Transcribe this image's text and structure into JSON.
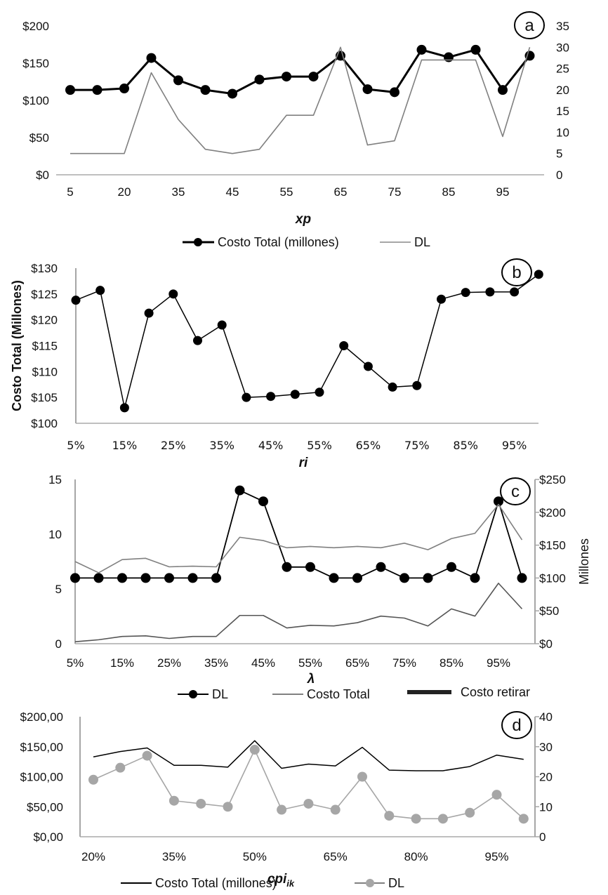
{
  "chart_data": [
    {
      "id": "a",
      "type": "line",
      "badge": "a",
      "xlabel": "xp",
      "categories": [
        "5",
        "15",
        "20",
        "30",
        "35",
        "40",
        "45",
        "50",
        "55",
        "60",
        "65",
        "70",
        "75",
        "80",
        "85",
        "90",
        "95",
        "100"
      ],
      "tick_labels": [
        "5",
        "",
        "20",
        "",
        "35",
        "",
        "45",
        "",
        "55",
        "",
        "65",
        "",
        "75",
        "",
        "85",
        "",
        "95",
        ""
      ],
      "y_left": {
        "ticks": [
          "$0",
          "$50",
          "$100",
          "$150",
          "$200"
        ],
        "range": [
          0,
          200
        ]
      },
      "y_right": {
        "ticks": [
          "0",
          "5",
          "10",
          "15",
          "20",
          "25",
          "30",
          "35"
        ],
        "range": [
          0,
          35
        ]
      },
      "series": [
        {
          "name": "Costo Total (millones)",
          "axis": "left",
          "color": "#000000",
          "markers": true,
          "values": [
            114,
            114,
            116,
            157,
            127,
            114,
            109,
            128,
            132,
            132,
            160,
            115,
            111,
            168,
            158,
            168,
            114,
            160
          ]
        },
        {
          "name": "DL",
          "axis": "right",
          "color": "#808080",
          "markers": false,
          "values": [
            5,
            5,
            5,
            24,
            13,
            6,
            5,
            6,
            14,
            14,
            30,
            7,
            8,
            27,
            27,
            27,
            9,
            30
          ]
        }
      ],
      "legend": [
        "Costo Total (millones)",
        "DL"
      ]
    },
    {
      "id": "b",
      "type": "line",
      "badge": "b",
      "xlabel": "ri",
      "ylabel": "Costo Total (Millones)",
      "categories": [
        "5%",
        "10%",
        "15%",
        "20%",
        "25%",
        "30%",
        "35%",
        "40%",
        "45%",
        "50%",
        "55%",
        "60%",
        "65%",
        "70%",
        "75%",
        "80%",
        "85%",
        "90%",
        "95%",
        "100%"
      ],
      "tick_labels": [
        "5%",
        "",
        "15%",
        "",
        "25%",
        "",
        "35%",
        "",
        "45%",
        "",
        "55%",
        "",
        "65%",
        "",
        "75%",
        "",
        "85%",
        "",
        "95%",
        ""
      ],
      "y_left": {
        "ticks": [
          "$100",
          "$105",
          "$110",
          "$115",
          "$120",
          "$125",
          "$130"
        ],
        "range": [
          100,
          130
        ]
      },
      "series": [
        {
          "name": "Costo Total",
          "axis": "left",
          "color": "#000000",
          "markers": true,
          "values": [
            123.8,
            125.7,
            103,
            121.3,
            125,
            116,
            119,
            105,
            105.2,
            105.6,
            106,
            115,
            111,
            107,
            107.3,
            124,
            125.3,
            125.4,
            125.4,
            128.8
          ]
        }
      ]
    },
    {
      "id": "c",
      "type": "line",
      "badge": "c",
      "xlabel": "λ",
      "ylabel_right": "Millones",
      "categories": [
        "5%",
        "10%",
        "15%",
        "20%",
        "25%",
        "30%",
        "35%",
        "40%",
        "45%",
        "50%",
        "55%",
        "60%",
        "65%",
        "70%",
        "75%",
        "80%",
        "85%",
        "90%",
        "95%",
        "100%"
      ],
      "tick_labels": [
        "5%",
        "",
        "15%",
        "",
        "25%",
        "",
        "35%",
        "",
        "45%",
        "",
        "55%",
        "",
        "65%",
        "",
        "75%",
        "",
        "85%",
        "",
        "95%",
        ""
      ],
      "y_left": {
        "ticks": [
          "0",
          "5",
          "10",
          "15"
        ],
        "range": [
          0,
          15
        ]
      },
      "y_right": {
        "ticks": [
          "$0",
          "$50",
          "$100",
          "$150",
          "$200",
          "$250"
        ],
        "range": [
          0,
          250
        ]
      },
      "series": [
        {
          "name": "DL",
          "axis": "left",
          "color": "#000000",
          "markers": true,
          "values": [
            6,
            6,
            6,
            6,
            6,
            6,
            6,
            14,
            13,
            7,
            7,
            6,
            6,
            7,
            6,
            6,
            7,
            6,
            13,
            6
          ]
        },
        {
          "name": "Costo Total",
          "axis": "right",
          "color": "#808080",
          "markers": false,
          "values": [
            125,
            108,
            128,
            130,
            117,
            118,
            117,
            162,
            157,
            146,
            148,
            146,
            148,
            146,
            153,
            143,
            160,
            168,
            212,
            158
          ]
        },
        {
          "name": "Costo retirar",
          "axis": "right",
          "color": "#555555",
          "markers": false,
          "values": [
            3,
            6,
            11,
            12,
            8,
            11,
            11,
            43,
            43,
            24,
            28,
            27,
            32,
            42,
            39,
            27,
            53,
            42,
            92,
            53
          ]
        }
      ],
      "legend": [
        "DL",
        "Costo Total",
        "Costo retirar"
      ]
    },
    {
      "id": "d",
      "type": "line",
      "badge": "d",
      "xlabel": "cpi",
      "xlabel_sub": "ik",
      "categories": [
        "20%",
        "25%",
        "30%",
        "35%",
        "40%",
        "45%",
        "50%",
        "55%",
        "60%",
        "65%",
        "70%",
        "75%",
        "80%",
        "85%",
        "90%",
        "95%",
        "100%"
      ],
      "tick_labels": [
        "20%",
        "",
        "",
        "35%",
        "",
        "",
        "50%",
        "",
        "",
        "65%",
        "",
        "",
        "80%",
        "",
        "",
        "95%",
        ""
      ],
      "y_left": {
        "ticks": [
          "$0,00",
          "$50,00",
          "$100,00",
          "$150,00",
          "$200,00"
        ],
        "range": [
          0,
          200
        ]
      },
      "y_right": {
        "ticks": [
          "0",
          "10",
          "20",
          "30",
          "40"
        ],
        "range": [
          0,
          40
        ]
      },
      "series": [
        {
          "name": "Costo Total (millones)",
          "axis": "left",
          "color": "#000000",
          "markers": false,
          "values": [
            133,
            142,
            148,
            119,
            119,
            116,
            160,
            114,
            121,
            118,
            149,
            111,
            110,
            110,
            117,
            136,
            129
          ]
        },
        {
          "name": "DL",
          "axis": "right",
          "color": "#a6a6a6",
          "markers": true,
          "values": [
            19,
            23,
            27,
            12,
            11,
            10,
            29,
            9,
            11,
            9,
            20,
            7,
            6,
            6,
            8,
            14,
            6
          ]
        }
      ],
      "legend": [
        "Costo Total (millones)",
        "DL"
      ]
    }
  ]
}
